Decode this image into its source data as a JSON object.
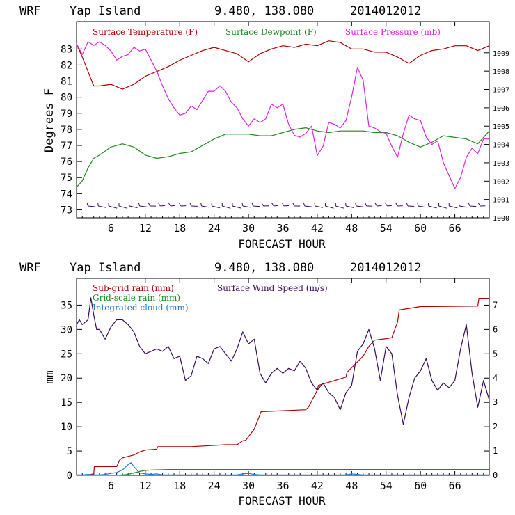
{
  "chart_data": [
    {
      "type": "line",
      "header": {
        "model": "WRF",
        "location": "Yap Island",
        "coords": "9.480, 138.080",
        "init": "2014012012"
      },
      "xlabel": "FORECAST HOUR",
      "ylabel": "Degrees F",
      "xlim": [
        0,
        72
      ],
      "xticks": [
        "6",
        "12",
        "18",
        "24",
        "30",
        "36",
        "42",
        "48",
        "54",
        "60",
        "66"
      ],
      "ylim": [
        72.5,
        84.7
      ],
      "yticks": [
        "73",
        "74",
        "75",
        "76",
        "77",
        "78",
        "79",
        "80",
        "81",
        "82",
        "83"
      ],
      "y2lim": [
        1000,
        1010.7
      ],
      "y2ticks": [
        "1000",
        "1001",
        "1002",
        "1003",
        "1004",
        "1005",
        "1006",
        "1007",
        "1008",
        "1009"
      ],
      "colors": {
        "temperature": "#b00000",
        "dewpoint": "#1e8a1e",
        "pressure": "#e020e0",
        "wind": "#000000"
      },
      "series": [
        {
          "name": "Surface Temperature (F)",
          "axis": "left",
          "x": [
            0,
            1,
            2,
            3,
            4,
            6,
            8,
            10,
            12,
            14,
            16,
            18,
            20,
            22,
            24,
            26,
            28,
            30,
            32,
            34,
            36,
            38,
            40,
            42,
            44,
            46,
            48,
            50,
            52,
            54,
            56,
            58,
            60,
            62,
            64,
            66,
            68,
            70,
            72
          ],
          "y": [
            83.3,
            82.5,
            81.6,
            80.7,
            80.7,
            80.8,
            80.5,
            80.8,
            81.3,
            81.6,
            81.9,
            82.3,
            82.6,
            82.9,
            83.1,
            82.9,
            82.7,
            82.2,
            82.7,
            83.0,
            83.2,
            83.1,
            83.3,
            83.2,
            83.5,
            83.4,
            83.0,
            83.0,
            82.8,
            82.8,
            82.5,
            82.1,
            82.6,
            82.9,
            83.0,
            83.2,
            83.2,
            82.9,
            83.2
          ]
        },
        {
          "name": "Surface Dewpoint (F)",
          "axis": "left",
          "x": [
            0,
            1,
            2,
            3,
            4,
            6,
            8,
            10,
            12,
            14,
            16,
            18,
            20,
            22,
            24,
            26,
            28,
            30,
            32,
            34,
            36,
            38,
            40,
            42,
            44,
            46,
            48,
            50,
            52,
            54,
            56,
            58,
            60,
            62,
            64,
            66,
            68,
            70,
            72
          ],
          "y": [
            74.4,
            74.8,
            75.6,
            76.2,
            76.4,
            76.9,
            77.1,
            76.9,
            76.4,
            76.2,
            76.3,
            76.5,
            76.6,
            77.0,
            77.4,
            77.7,
            77.7,
            77.7,
            77.6,
            77.6,
            77.8,
            78.0,
            78.1,
            77.9,
            77.8,
            77.9,
            77.9,
            77.9,
            77.8,
            77.8,
            77.6,
            77.2,
            76.9,
            77.2,
            77.6,
            77.5,
            77.4,
            77.1,
            77.9
          ]
        },
        {
          "name": "Surface Pressure (mb)",
          "axis": "right",
          "x": [
            0,
            1,
            2,
            3,
            4,
            5,
            6,
            7,
            8,
            9,
            10,
            11,
            12,
            13,
            14,
            15,
            16,
            17,
            18,
            19,
            20,
            21,
            22,
            23,
            24,
            25,
            26,
            27,
            28,
            29,
            30,
            31,
            32,
            33,
            34,
            35,
            36,
            37,
            38,
            39,
            40,
            41,
            42,
            43,
            44,
            45,
            46,
            47,
            48,
            49,
            50,
            51,
            52,
            53,
            54,
            55,
            56,
            57,
            58,
            59,
            60,
            61,
            62,
            63,
            64,
            65,
            66,
            67,
            68,
            69,
            70,
            71,
            72
          ],
          "y": [
            1009.5,
            1008.9,
            1009.6,
            1009.4,
            1009.6,
            1009.4,
            1009.1,
            1008.6,
            1008.8,
            1008.9,
            1009.3,
            1009.1,
            1009.2,
            1008.6,
            1008.0,
            1007.2,
            1006.5,
            1006.0,
            1005.6,
            1005.7,
            1006.1,
            1005.9,
            1006.4,
            1006.9,
            1006.9,
            1007.2,
            1006.9,
            1006.3,
            1006.0,
            1005.4,
            1005.0,
            1005.4,
            1005.2,
            1005.4,
            1006.2,
            1006.0,
            1006.2,
            1005.1,
            1004.5,
            1004.4,
            1004.6,
            1005.0,
            1003.4,
            1003.9,
            1005.2,
            1005.1,
            1004.9,
            1005.3,
            1006.6,
            1008.2,
            1007.5,
            1005.0,
            1004.9,
            1004.7,
            1004.6,
            1003.9,
            1003.3,
            1004.6,
            1005.6,
            1005.4,
            1005.3,
            1004.4,
            1004.0,
            1004.2,
            1003.0,
            1002.3,
            1001.6,
            1002.2,
            1003.3,
            1003.8,
            1003.5,
            1004.3,
            1004.3
          ]
        }
      ],
      "wind_barbs": {
        "label_hidden": true,
        "count": 39
      }
    },
    {
      "type": "line",
      "header": {
        "model": "WRF",
        "location": "Yap Island",
        "coords": "9.480, 138.080",
        "init": "2014012012"
      },
      "xlabel": "FORECAST HOUR",
      "ylabel": "mm",
      "xlim": [
        0,
        72
      ],
      "xticks": [
        "6",
        "12",
        "18",
        "24",
        "30",
        "36",
        "42",
        "48",
        "54",
        "60",
        "66"
      ],
      "ylim": [
        0,
        40.5
      ],
      "yticks": [
        "0",
        "5",
        "10",
        "15",
        "20",
        "25",
        "30",
        "35"
      ],
      "y2lim": [
        0,
        8.1
      ],
      "y2ticks": [
        "0",
        "1",
        "2",
        "3",
        "4",
        "5",
        "6",
        "7"
      ],
      "colors": {
        "subgrid": "#b00000",
        "gridscale": "#1e8a1e",
        "cloud": "#1e7ad0",
        "wind": "#3a0a5a"
      },
      "series": [
        {
          "name": "Sub-grid rain (mm)",
          "axis": "left",
          "x": [
            0,
            1,
            2,
            3,
            3.1,
            7,
            7.5,
            8,
            10,
            11,
            12,
            14,
            14.2,
            20,
            26,
            28,
            29,
            29.5,
            31,
            32,
            32.2,
            40,
            40.5,
            42,
            42.2,
            47,
            47.2,
            50,
            51,
            52,
            54,
            55,
            56,
            56.3,
            60,
            70,
            70.2,
            72
          ],
          "y": [
            0,
            0,
            0.1,
            0.3,
            1.8,
            1.8,
            3.1,
            3.6,
            4.2,
            4.8,
            5.2,
            5.4,
            5.9,
            5.9,
            6.3,
            6.3,
            7.1,
            7.2,
            9.5,
            12.5,
            13.1,
            13.5,
            14.1,
            17.5,
            18.5,
            20.2,
            21.2,
            24.5,
            26.5,
            27.8,
            28.1,
            28.3,
            31.5,
            34.0,
            34.7,
            34.8,
            36.4,
            36.4
          ]
        },
        {
          "name": "Grid-scale rain (mm)",
          "axis": "left",
          "x": [
            0,
            7,
            8,
            9,
            10,
            11,
            12,
            13,
            16,
            72
          ],
          "y": [
            0,
            0,
            0.1,
            0.2,
            0.5,
            0.8,
            1.0,
            1.1,
            1.2,
            1.2
          ]
        },
        {
          "name": "Integrated cloud (mm)",
          "axis": "left",
          "x": [
            0,
            1,
            2,
            3,
            4,
            5,
            6,
            7,
            8,
            9,
            9.5,
            10,
            11,
            12,
            13,
            14,
            15,
            20,
            28,
            29,
            30,
            31,
            32,
            40,
            47,
            48,
            49,
            50,
            72
          ],
          "y": [
            0.1,
            0.1,
            0.2,
            0.1,
            0.1,
            0.2,
            0.4,
            0.6,
            1.1,
            2.2,
            2.6,
            1.8,
            0.5,
            0.3,
            0.2,
            0.3,
            0.1,
            0.1,
            0.1,
            0.3,
            0.4,
            0.2,
            0.1,
            0.1,
            0.1,
            0.3,
            0.2,
            0.1,
            0.1
          ]
        },
        {
          "name": "Surface Wind Speed (m/s)",
          "axis": "right",
          "x": [
            0,
            0.5,
            1,
            2,
            2.5,
            3,
            3.5,
            4,
            5,
            6,
            7,
            8,
            9,
            10,
            11,
            12,
            13,
            14,
            15,
            16,
            17,
            18,
            19,
            20,
            21,
            22,
            23,
            24,
            25,
            26,
            27,
            28,
            29,
            30,
            31,
            32,
            33,
            34,
            35,
            36,
            37,
            38,
            39,
            40,
            41,
            42,
            43,
            44,
            45,
            46,
            47,
            48,
            49,
            50,
            51,
            52,
            53,
            54,
            55,
            56,
            57,
            58,
            59,
            60,
            61,
            62,
            63,
            64,
            65,
            66,
            67,
            68,
            69,
            70,
            71,
            72
          ],
          "y": [
            6.2,
            6.4,
            6.2,
            6.4,
            7.3,
            6.6,
            6.0,
            6.0,
            5.6,
            6.1,
            6.4,
            6.4,
            6.2,
            5.9,
            5.3,
            5.0,
            5.1,
            5.2,
            5.1,
            5.3,
            4.8,
            4.9,
            3.9,
            4.1,
            4.9,
            4.8,
            4.6,
            5.2,
            5.3,
            5.0,
            4.7,
            5.2,
            5.9,
            5.4,
            5.6,
            4.2,
            3.8,
            4.2,
            4.4,
            4.2,
            4.4,
            4.3,
            4.7,
            4.4,
            3.8,
            3.5,
            3.8,
            3.4,
            3.2,
            2.7,
            3.4,
            3.7,
            5.1,
            5.4,
            6.0,
            5.2,
            3.9,
            5.3,
            5.0,
            3.3,
            2.1,
            3.2,
            4.0,
            4.3,
            4.8,
            3.9,
            3.5,
            3.8,
            3.6,
            3.9,
            5.2,
            6.2,
            4.2,
            2.8,
            3.9,
            3.1
          ]
        }
      ],
      "wind_barbs": {
        "label_hidden": true,
        "count": 0
      }
    }
  ],
  "legend_top": {
    "temp": "Surface Temperature (F)",
    "dew": "Surface Dewpoint (F)",
    "pres": "Surface Pressure (mb)"
  },
  "legend_bottom": {
    "subgrid": "Sub-grid rain (mm)",
    "wind": "Surface Wind Speed (m/s)",
    "gridscale": "Grid-scale rain (mm)",
    "cloud": "Integrated cloud (mm)"
  },
  "headers": {
    "top": {
      "model": "WRF",
      "location": "Yap Island",
      "coords": "9.480, 138.080",
      "init": "2014012012"
    },
    "bottom": {
      "model": "WRF",
      "location": "Yap Island",
      "coords": "9.480, 138.080",
      "init": "2014012012"
    }
  },
  "labels": {
    "top_xlabel": "FORECAST HOUR",
    "bottom_xlabel": "FORECAST HOUR",
    "top_ylabel": "Degrees F",
    "bottom_ylabel": "mm"
  }
}
